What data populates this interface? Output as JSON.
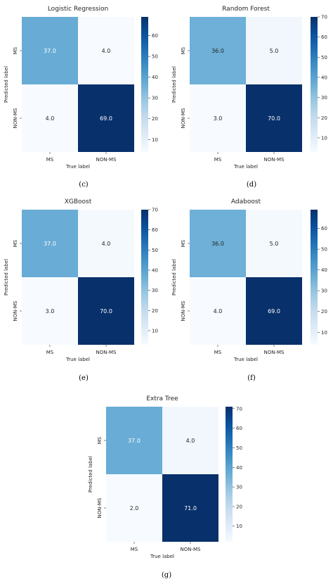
{
  "chart_data": [
    {
      "type": "heatmap",
      "title": "Logistic Regression",
      "panel_label": "(c)",
      "xlabel": "True label",
      "ylabel": "Predicted label",
      "x_categories": [
        "MS",
        "NON-MS"
      ],
      "y_categories": [
        "MS",
        "NON-MS"
      ],
      "values": [
        [
          37.0,
          4.0
        ],
        [
          4.0,
          69.0
        ]
      ],
      "value_labels": [
        [
          "37.0",
          "4.0"
        ],
        [
          "4.0",
          "69.0"
        ]
      ],
      "colorbar_range": [
        4,
        69
      ],
      "colorbar_ticks": [
        "10",
        "20",
        "30",
        "40",
        "50",
        "60"
      ],
      "colormap": "Blues"
    },
    {
      "type": "heatmap",
      "title": "Random Forest",
      "panel_label": "(d)",
      "xlabel": "True label",
      "ylabel": "Predicted label",
      "x_categories": [
        "MS",
        "NON-MS"
      ],
      "y_categories": [
        "MS",
        "NON-MS"
      ],
      "values": [
        [
          36.0,
          5.0
        ],
        [
          3.0,
          70.0
        ]
      ],
      "value_labels": [
        [
          "36.0",
          "5.0"
        ],
        [
          "3.0",
          "70.0"
        ]
      ],
      "colorbar_range": [
        3,
        70
      ],
      "colorbar_ticks": [
        "10",
        "20",
        "30",
        "40",
        "50",
        "60",
        "70"
      ],
      "colormap": "Blues"
    },
    {
      "type": "heatmap",
      "title": "XGBoost",
      "panel_label": "(e)",
      "xlabel": "True label",
      "ylabel": "Predicted label",
      "x_categories": [
        "MS",
        "NON-MS"
      ],
      "y_categories": [
        "MS",
        "NON-MS"
      ],
      "values": [
        [
          37.0,
          4.0
        ],
        [
          3.0,
          70.0
        ]
      ],
      "value_labels": [
        [
          "37.0",
          "4.0"
        ],
        [
          "3.0",
          "70.0"
        ]
      ],
      "colorbar_range": [
        3,
        70
      ],
      "colorbar_ticks": [
        "10",
        "20",
        "30",
        "40",
        "50",
        "60",
        "70"
      ],
      "colormap": "Blues"
    },
    {
      "type": "heatmap",
      "title": "Adaboost",
      "panel_label": "(f)",
      "xlabel": "True label",
      "ylabel": "Predicted label",
      "x_categories": [
        "MS",
        "NON-MS"
      ],
      "y_categories": [
        "MS",
        "NON-MS"
      ],
      "values": [
        [
          36.0,
          5.0
        ],
        [
          4.0,
          69.0
        ]
      ],
      "value_labels": [
        [
          "36.0",
          "5.0"
        ],
        [
          "4.0",
          "69.0"
        ]
      ],
      "colorbar_range": [
        4,
        69
      ],
      "colorbar_ticks": [
        "10",
        "20",
        "30",
        "40",
        "50",
        "60"
      ],
      "colormap": "Blues"
    },
    {
      "type": "heatmap",
      "title": "Extra Tree",
      "panel_label": "(g)",
      "xlabel": "True label",
      "ylabel": "Predicted label",
      "x_categories": [
        "MS",
        "NON-MS"
      ],
      "y_categories": [
        "MS",
        "NON-MS"
      ],
      "values": [
        [
          37.0,
          4.0
        ],
        [
          2.0,
          71.0
        ]
      ],
      "value_labels": [
        [
          "37.0",
          "4.0"
        ],
        [
          "2.0",
          "71.0"
        ]
      ],
      "colorbar_range": [
        2,
        71
      ],
      "colorbar_ticks": [
        "10",
        "20",
        "30",
        "40",
        "50",
        "60",
        "70"
      ],
      "colormap": "Blues"
    }
  ],
  "colors": {
    "low": "#f7fbff",
    "high": "#08306b",
    "text_dark": "#262626",
    "text_light": "#ffffff"
  }
}
